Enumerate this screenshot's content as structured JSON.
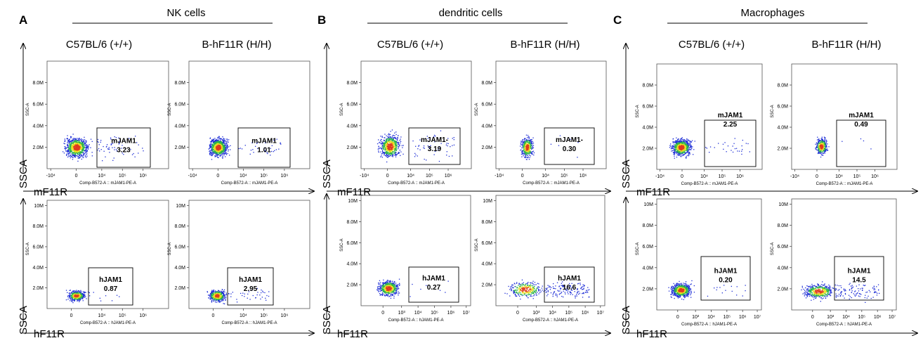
{
  "colors": {
    "ink": "#000000",
    "dot_low": "#1f2fd6",
    "dot_mid": "#2ab34a",
    "dot_high": "#e8e020",
    "dot_peak": "#e03a1e"
  },
  "axis_labels": {
    "y_big": "SSCA",
    "x_mouse": "mF11R",
    "x_human": "hF11R",
    "y_small": "SSC-A",
    "x_small_mouse": "Comp-B572-A :: mJAM1-PE-A",
    "x_small_human": "Comp-B572-A :: hJAM1-PE-A"
  },
  "chart_data": [
    {
      "panel": "A",
      "group": "NK cells",
      "plots": [
        {
          "row": "mouse",
          "strain": "C57BL/6 (+/+)",
          "type": "scatter",
          "gate_label": "mJAM1",
          "gate_value": "3.23",
          "x_ticks": [
            "-10⁴",
            "0",
            "10⁴",
            "10⁵",
            "10⁶"
          ],
          "y_ticks": [
            "2.0M",
            "4.0M",
            "6.0M",
            "8.0M"
          ],
          "ylim": [
            0,
            10
          ]
        },
        {
          "row": "mouse",
          "strain": "B-hF11R (H/H)",
          "type": "scatter",
          "gate_label": "mJAM1",
          "gate_value": "1.01",
          "x_ticks": [
            "-10⁴",
            "0",
            "10⁴",
            "10⁵",
            "10⁶"
          ],
          "y_ticks": [
            "2.0M",
            "4.0M",
            "6.0M",
            "8.0M"
          ],
          "ylim": [
            0,
            10
          ]
        },
        {
          "row": "human",
          "strain": "C57BL/6 (+/+)",
          "type": "scatter",
          "gate_label": "hJAM1",
          "gate_value": "0.87",
          "x_ticks": [
            "0",
            "10⁴",
            "10⁵",
            "10⁶"
          ],
          "y_ticks": [
            "2.0M",
            "4.0M",
            "6.0M",
            "8.0M",
            "10M"
          ],
          "ylim": [
            0,
            10.5
          ]
        },
        {
          "row": "human",
          "strain": "B-hF11R (H/H)",
          "type": "scatter",
          "gate_label": "hJAM1",
          "gate_value": "2.95",
          "x_ticks": [
            "0",
            "10⁴",
            "10⁵",
            "10⁶"
          ],
          "y_ticks": [
            "2.0M",
            "4.0M",
            "6.0M",
            "8.0M",
            "10M"
          ],
          "ylim": [
            0,
            10.5
          ]
        }
      ]
    },
    {
      "panel": "B",
      "group": "dendritic cells",
      "plots": [
        {
          "row": "mouse",
          "strain": "C57BL/6 (+/+)",
          "type": "scatter",
          "gate_label": "mJAM1-",
          "gate_value": "3.19",
          "x_ticks": [
            "-10⁴",
            "0",
            "10⁴",
            "10⁵",
            "10⁶"
          ],
          "y_ticks": [
            "2.0M",
            "4.0M",
            "6.0M",
            "8.0M"
          ],
          "ylim": [
            0,
            10
          ]
        },
        {
          "row": "mouse",
          "strain": "B-hF11R (H/H)",
          "type": "scatter",
          "gate_label": "mJAM1-",
          "gate_value": "0.30",
          "x_ticks": [
            "-10⁴",
            "0",
            "10⁴",
            "10⁵",
            "10⁶"
          ],
          "y_ticks": [
            "2.0M",
            "4.0M",
            "6.0M",
            "8.0M"
          ],
          "ylim": [
            0,
            10
          ]
        },
        {
          "row": "human",
          "strain": "C57BL/6 (+/+)",
          "type": "scatter",
          "gate_label": "hJAM1",
          "gate_value": "0.27",
          "x_ticks": [
            "0",
            "10³",
            "10⁴",
            "10⁵",
            "10⁶",
            "10⁷"
          ],
          "y_ticks": [
            "2.0M",
            "4.0M",
            "6.0M",
            "8.0M",
            "10M"
          ],
          "ylim": [
            0,
            10.5
          ]
        },
        {
          "row": "human",
          "strain": "B-hF11R (H/H)",
          "type": "scatter",
          "gate_label": "hJAM1",
          "gate_value": "16.6",
          "x_ticks": [
            "0",
            "10³",
            "10⁴",
            "10⁵",
            "10⁶",
            "10⁷"
          ],
          "y_ticks": [
            "2.0M",
            "4.0M",
            "6.0M",
            "8.0M",
            "10M"
          ],
          "ylim": [
            0,
            10.5
          ]
        }
      ]
    },
    {
      "panel": "C",
      "group": "Macrophages",
      "plots": [
        {
          "row": "mouse",
          "strain": "C57BL/6 (+/+)",
          "type": "scatter",
          "gate_label": "mJAM1",
          "gate_value": "2.25",
          "x_ticks": [
            "-10⁴",
            "0",
            "10⁴",
            "10⁵",
            "10⁶"
          ],
          "y_ticks": [
            "2.0M",
            "4.0M",
            "6.0M",
            "8.0M"
          ],
          "ylim": [
            0,
            10
          ]
        },
        {
          "row": "mouse",
          "strain": "B-hF11R (H/H)",
          "type": "scatter",
          "gate_label": "mJAM1",
          "gate_value": "0.49",
          "x_ticks": [
            "-10⁴",
            "0",
            "10⁴",
            "10⁵",
            "10⁶"
          ],
          "y_ticks": [
            "2.0M",
            "4.0M",
            "6.0M",
            "8.0M"
          ],
          "ylim": [
            0,
            10
          ]
        },
        {
          "row": "human",
          "strain": "C57BL/6 (+/+)",
          "type": "scatter",
          "gate_label": "hJAM1",
          "gate_value": "0.20",
          "x_ticks": [
            "0",
            "10³",
            "10⁴",
            "10⁵",
            "10⁶",
            "10⁷"
          ],
          "y_ticks": [
            "2.0M",
            "4.0M",
            "6.0M",
            "8.0M",
            "10M"
          ],
          "ylim": [
            0,
            10.5
          ]
        },
        {
          "row": "human",
          "strain": "B-hF11R (H/H)",
          "type": "scatter",
          "gate_label": "hJAM1",
          "gate_value": "14.5",
          "x_ticks": [
            "0",
            "10³",
            "10⁴",
            "10⁵",
            "10⁶",
            "10⁷"
          ],
          "y_ticks": [
            "2.0M",
            "4.0M",
            "6.0M",
            "8.0M",
            "10M"
          ],
          "ylim": [
            0,
            10.5
          ]
        }
      ]
    }
  ]
}
